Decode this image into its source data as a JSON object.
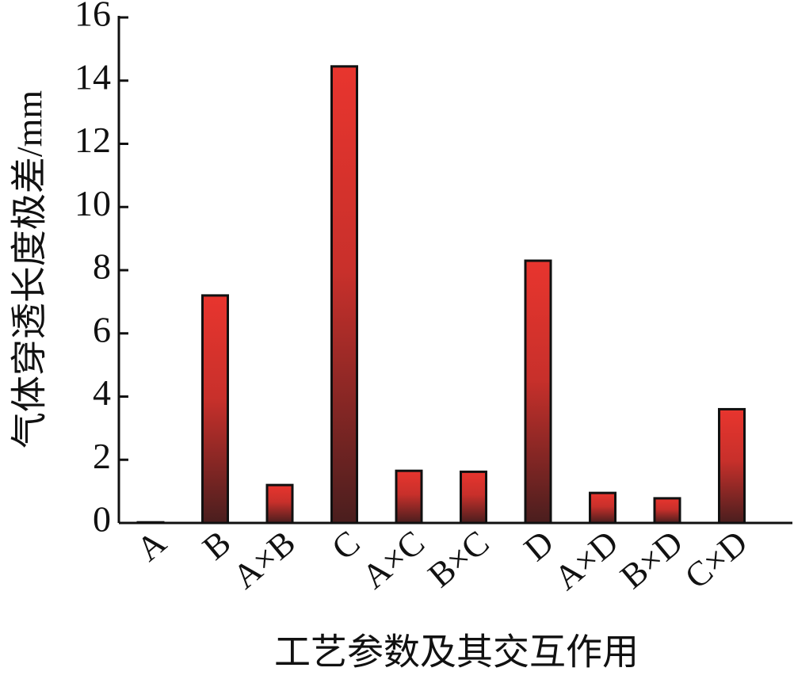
{
  "chart_data": {
    "type": "bar",
    "xlabel": "工艺参数及其交互作用",
    "ylabel": "气体穿透长度极差/mm",
    "categories": [
      "A",
      "B",
      "A×B",
      "C",
      "A×C",
      "B×C",
      "D",
      "A×D",
      "B×D",
      "C×D"
    ],
    "values": [
      0.02,
      7.2,
      1.2,
      14.45,
      1.65,
      1.62,
      8.3,
      0.95,
      0.78,
      3.6
    ],
    "color": "#e8352e",
    "ylim": [
      0,
      16
    ],
    "yticks": [
      0,
      2,
      4,
      6,
      8,
      10,
      12,
      14,
      16
    ],
    "grid": false
  }
}
